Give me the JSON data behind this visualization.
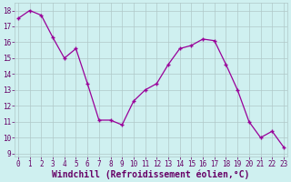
{
  "x": [
    0,
    1,
    2,
    3,
    4,
    5,
    6,
    7,
    8,
    9,
    10,
    11,
    12,
    13,
    14,
    15,
    16,
    17,
    18,
    19,
    20,
    21,
    22,
    23
  ],
  "y": [
    17.5,
    18.0,
    17.7,
    16.3,
    15.0,
    15.6,
    13.4,
    11.1,
    11.1,
    10.8,
    12.3,
    13.0,
    13.4,
    14.6,
    15.6,
    15.8,
    16.2,
    16.1,
    14.6,
    13.0,
    11.0,
    10.0,
    10.4,
    9.4
  ],
  "line_color": "#990099",
  "marker": "+",
  "marker_size": 3,
  "bg_color": "#cff0f0",
  "grid_color": "#b0c8c8",
  "xlabel": "Windchill (Refroidissement éolien,°C)",
  "xlabel_color": "#660066",
  "ylim": [
    8.8,
    18.5
  ],
  "xlim": [
    -0.3,
    23.3
  ],
  "yticks": [
    9,
    10,
    11,
    12,
    13,
    14,
    15,
    16,
    17,
    18
  ],
  "xticks": [
    0,
    1,
    2,
    3,
    4,
    5,
    6,
    7,
    8,
    9,
    10,
    11,
    12,
    13,
    14,
    15,
    16,
    17,
    18,
    19,
    20,
    21,
    22,
    23
  ],
  "tick_fontsize": 5.5,
  "xlabel_fontsize": 7.0,
  "linewidth": 0.9
}
